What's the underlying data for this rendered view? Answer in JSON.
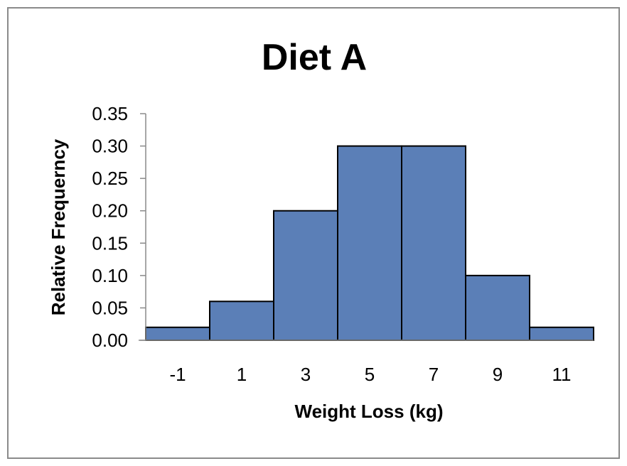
{
  "chart_data": {
    "type": "bar",
    "title": "Diet A",
    "xlabel": "Weight Loss (kg)",
    "ylabel": "Relative Frequerncy",
    "categories": [
      "-1",
      "1",
      "3",
      "5",
      "7",
      "9",
      "11"
    ],
    "values": [
      0.02,
      0.06,
      0.2,
      0.3,
      0.3,
      0.1,
      0.02
    ],
    "yticks": [
      "0.00",
      "0.05",
      "0.10",
      "0.15",
      "0.20",
      "0.25",
      "0.30",
      "0.35"
    ],
    "ylim": [
      0,
      0.35
    ],
    "grid": false,
    "legend": "none",
    "bar_color": "#5b7fb7",
    "bar_edge_color": "#000000"
  }
}
